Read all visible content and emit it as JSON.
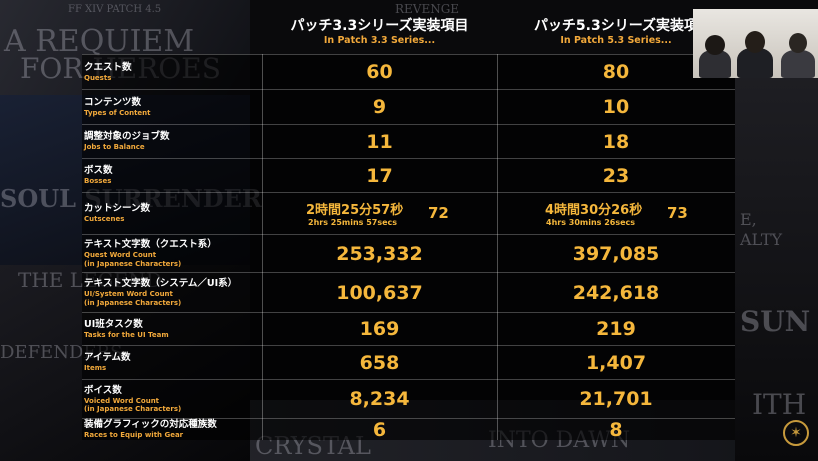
{
  "header": {
    "col1_jp": "パッチ3.3シリーズ実装項目",
    "col1_en": "In Patch 3.3 Series...",
    "col2_jp": "パッチ5.3シリーズ実装項",
    "col2_en": "In Patch 5.3 Series..."
  },
  "background": {
    "t1": "FF XIV PATCH 4.5",
    "t2": "A REQUIEM",
    "t3": "FOR HEROES",
    "t4": "SOUL SURRENDER",
    "t5": "THE LEGEND",
    "t6": "DEFENDERS",
    "t7": "CRYSTAL",
    "t8": "INTO DAWN",
    "t9": "E,",
    "t10": "ALTY",
    "t11": "SUN",
    "t12": "ITH",
    "t13": "REVENGE"
  },
  "rows": [
    {
      "jp": "クエスト数",
      "en": "Quests",
      "v1": "60",
      "v2": "80"
    },
    {
      "jp": "コンテンツ数",
      "en": "Types of Content",
      "v1": "9",
      "v2": "10"
    },
    {
      "jp": "調整対象のジョブ数",
      "en": "Jobs to Balance",
      "v1": "11",
      "v2": "18"
    },
    {
      "jp": "ボス数",
      "en": "Bosses",
      "v1": "17",
      "v2": "23"
    },
    {
      "jp": "カットシーン数",
      "en": "Cutscenes"
    },
    {
      "jp": "テキスト文字数（クエスト系）",
      "en": "Quest Word Count",
      "en2": "(in Japanese Characters)",
      "v1": "253,332",
      "v2": "397,085"
    },
    {
      "jp": "テキスト文字数（システム／UI系）",
      "en": "UI/System Word Count",
      "en2": "(in Japanese Characters)",
      "v1": "100,637",
      "v2": "242,618"
    },
    {
      "jp": "UI班タスク数",
      "en": "Tasks for the UI Team",
      "v1": "169",
      "v2": "219"
    },
    {
      "jp": "アイテム数",
      "en": "Items",
      "v1": "658",
      "v2": "1,407"
    },
    {
      "jp": "ボイス数",
      "en": "Voiced Word Count",
      "en2": "(in Japanese Characters)",
      "v1": "8,234",
      "v2": "21,701"
    },
    {
      "jp": "装備グラフィックの対応種族数",
      "en": "Races to Equip with Gear",
      "v1": "6",
      "v2": "8"
    }
  ],
  "cutscenes": {
    "c1_time_jp": "2時間25分57秒",
    "c1_time_en": "2hrs 25mins 57secs",
    "c1_count": "72",
    "c2_time_jp": "4時間30分26秒",
    "c2_time_en": "4hrs 30mins 26secs",
    "c2_count": "73"
  }
}
